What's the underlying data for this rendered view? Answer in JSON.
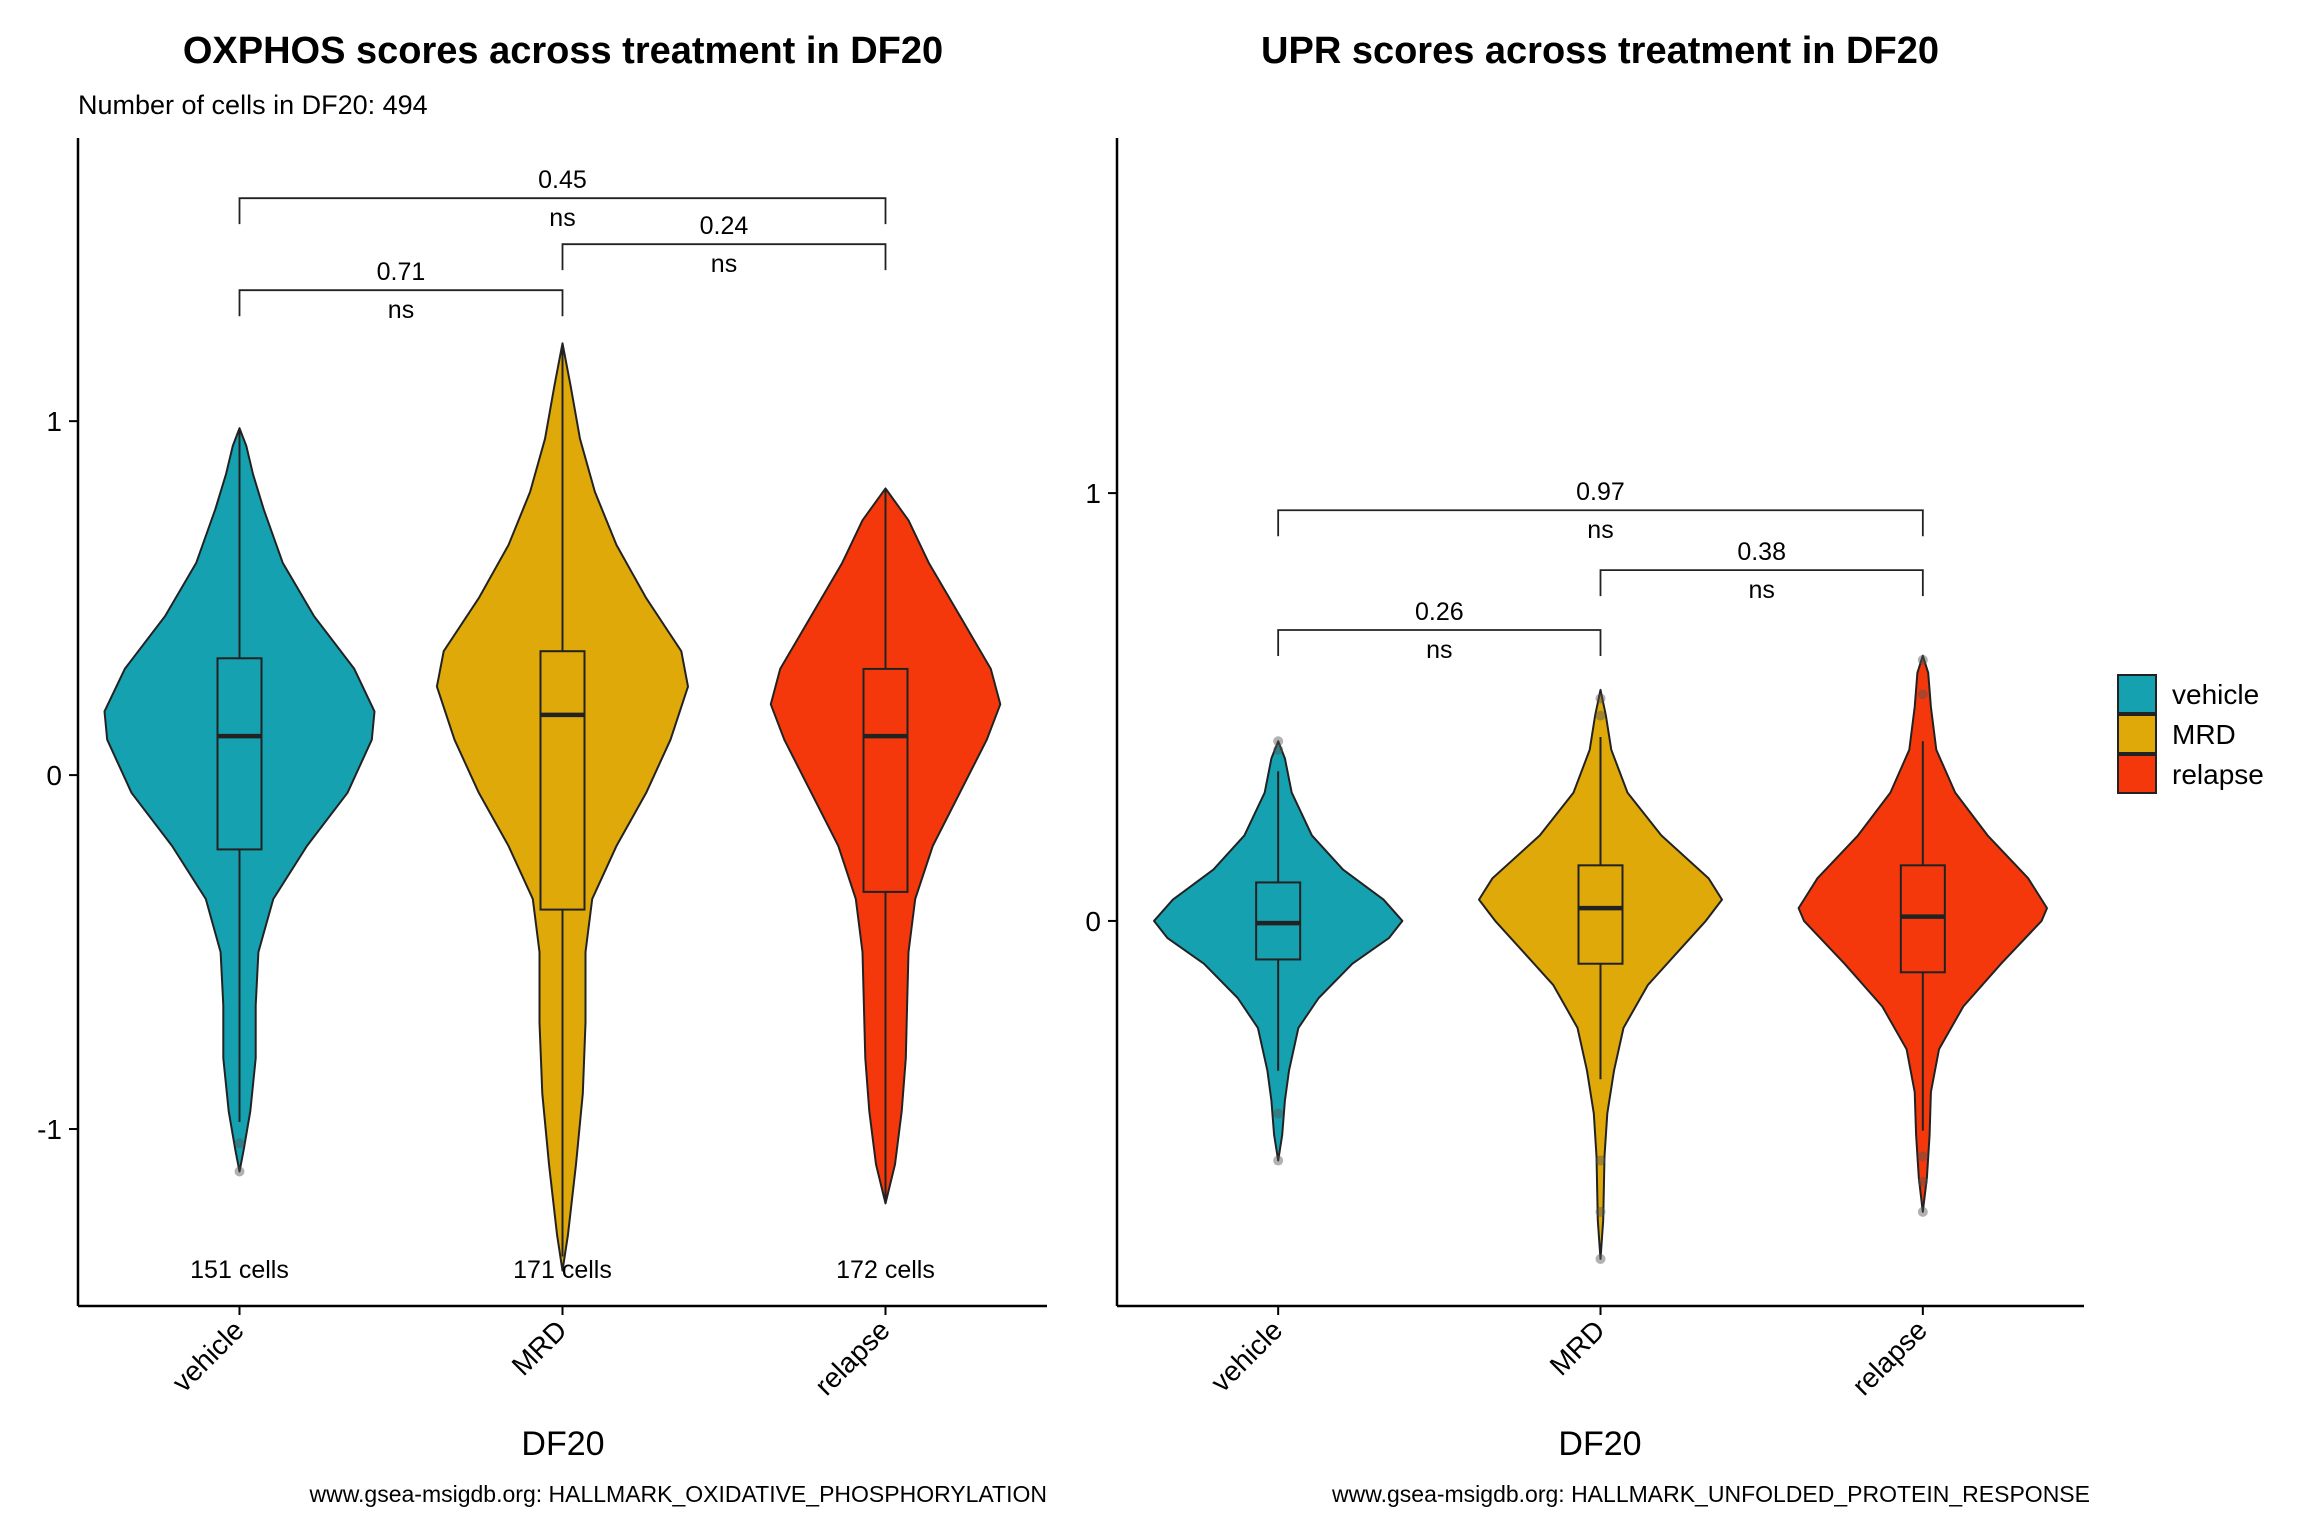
{
  "chart_data": [
    {
      "type": "violin",
      "title": "OXPHOS scores across treatment in DF20",
      "subtitle": "Number of cells in DF20: 494",
      "xlabel": "DF20",
      "ylabel": "",
      "caption": "www.gsea-msigdb.org: HALLMARK_OXIDATIVE_PHOSPHORYLATION",
      "categories": [
        "vehicle",
        "MRD",
        "relapse"
      ],
      "ylim": [
        -1.5,
        1.8
      ],
      "yticks": [
        -1,
        0,
        1
      ],
      "ytick_labels": [
        "-1",
        "0",
        "1"
      ],
      "violins": [
        {
          "group": "vehicle",
          "ymin": -1.12,
          "ymax": 0.98,
          "density": [
            [
              -1.12,
              0.0
            ],
            [
              -1.06,
              0.03
            ],
            [
              -0.95,
              0.08
            ],
            [
              -0.8,
              0.12
            ],
            [
              -0.65,
              0.12
            ],
            [
              -0.5,
              0.14
            ],
            [
              -0.35,
              0.25
            ],
            [
              -0.2,
              0.5
            ],
            [
              -0.05,
              0.8
            ],
            [
              0.1,
              0.98
            ],
            [
              0.18,
              1.0
            ],
            [
              0.3,
              0.85
            ],
            [
              0.45,
              0.55
            ],
            [
              0.6,
              0.32
            ],
            [
              0.75,
              0.18
            ],
            [
              0.85,
              0.1
            ],
            [
              0.93,
              0.05
            ],
            [
              0.98,
              0.0
            ]
          ],
          "box": {
            "q1": -0.21,
            "median": 0.11,
            "q3": 0.33,
            "whisker_low": -0.98,
            "whisker_high": 0.98
          },
          "outliers": [
            -1.04,
            -1.12
          ],
          "n_label": "151 cells"
        },
        {
          "group": "MRD",
          "ymin": -1.4,
          "ymax": 1.22,
          "density": [
            [
              -1.4,
              0.0
            ],
            [
              -1.3,
              0.04
            ],
            [
              -1.1,
              0.1
            ],
            [
              -0.9,
              0.15
            ],
            [
              -0.7,
              0.17
            ],
            [
              -0.5,
              0.17
            ],
            [
              -0.35,
              0.22
            ],
            [
              -0.2,
              0.4
            ],
            [
              -0.05,
              0.62
            ],
            [
              0.1,
              0.8
            ],
            [
              0.25,
              0.93
            ],
            [
              0.35,
              0.88
            ],
            [
              0.5,
              0.62
            ],
            [
              0.65,
              0.4
            ],
            [
              0.8,
              0.24
            ],
            [
              0.95,
              0.13
            ],
            [
              1.1,
              0.06
            ],
            [
              1.22,
              0.0
            ]
          ],
          "box": {
            "q1": -0.38,
            "median": 0.17,
            "q3": 0.35,
            "whisker_low": -1.36,
            "whisker_high": 1.22
          },
          "outliers": [],
          "n_label": "171 cells"
        },
        {
          "group": "relapse",
          "ymin": -1.21,
          "ymax": 0.81,
          "density": [
            [
              -1.21,
              0.0
            ],
            [
              -1.1,
              0.07
            ],
            [
              -0.95,
              0.12
            ],
            [
              -0.8,
              0.15
            ],
            [
              -0.65,
              0.16
            ],
            [
              -0.5,
              0.17
            ],
            [
              -0.35,
              0.22
            ],
            [
              -0.2,
              0.35
            ],
            [
              -0.05,
              0.55
            ],
            [
              0.1,
              0.75
            ],
            [
              0.2,
              0.85
            ],
            [
              0.3,
              0.78
            ],
            [
              0.45,
              0.55
            ],
            [
              0.6,
              0.32
            ],
            [
              0.72,
              0.17
            ],
            [
              0.81,
              0.0
            ]
          ],
          "box": {
            "q1": -0.33,
            "median": 0.11,
            "q3": 0.3,
            "whisker_low": -1.21,
            "whisker_high": 0.81
          },
          "outliers": [],
          "n_label": "172 cells"
        }
      ],
      "comparisons": [
        {
          "from": "vehicle",
          "to": "MRD",
          "y": 1.37,
          "p": "0.71",
          "sig": "ns"
        },
        {
          "from": "MRD",
          "to": "relapse",
          "y": 1.5,
          "p": "0.24",
          "sig": "ns"
        },
        {
          "from": "vehicle",
          "to": "relapse",
          "y": 1.63,
          "p": "0.45",
          "sig": "ns"
        }
      ]
    },
    {
      "type": "violin",
      "title": "UPR scores across treatment in DF20",
      "subtitle": "",
      "xlabel": "DF20",
      "ylabel": "",
      "caption": "www.gsea-msigdb.org: HALLMARK_UNFOLDED_PROTEIN_RESPONSE",
      "categories": [
        "vehicle",
        "MRD",
        "relapse"
      ],
      "ylim": [
        -0.9,
        1.83
      ],
      "yticks": [
        0,
        1
      ],
      "ytick_labels": [
        "0",
        "1"
      ],
      "violins": [
        {
          "group": "vehicle",
          "ymin": -0.56,
          "ymax": 0.42,
          "density": [
            [
              -0.56,
              0.0
            ],
            [
              -0.5,
              0.03
            ],
            [
              -0.42,
              0.05
            ],
            [
              -0.35,
              0.08
            ],
            [
              -0.25,
              0.15
            ],
            [
              -0.18,
              0.3
            ],
            [
              -0.1,
              0.55
            ],
            [
              -0.04,
              0.82
            ],
            [
              0.0,
              0.92
            ],
            [
              0.05,
              0.78
            ],
            [
              0.12,
              0.48
            ],
            [
              0.2,
              0.25
            ],
            [
              0.3,
              0.1
            ],
            [
              0.38,
              0.05
            ],
            [
              0.42,
              0.0
            ]
          ],
          "box": {
            "q1": -0.09,
            "median": -0.005,
            "q3": 0.09,
            "whisker_low": -0.35,
            "whisker_high": 0.35
          },
          "outliers": [
            0.42,
            0.4,
            -0.45,
            -0.56
          ],
          "n_label": ""
        },
        {
          "group": "MRD",
          "ymin": -0.79,
          "ymax": 0.54,
          "density": [
            [
              -0.79,
              0.0
            ],
            [
              -0.7,
              0.02
            ],
            [
              -0.55,
              0.03
            ],
            [
              -0.45,
              0.05
            ],
            [
              -0.35,
              0.1
            ],
            [
              -0.25,
              0.17
            ],
            [
              -0.15,
              0.35
            ],
            [
              -0.08,
              0.55
            ],
            [
              0.0,
              0.78
            ],
            [
              0.05,
              0.9
            ],
            [
              0.1,
              0.8
            ],
            [
              0.2,
              0.45
            ],
            [
              0.3,
              0.2
            ],
            [
              0.4,
              0.08
            ],
            [
              0.48,
              0.04
            ],
            [
              0.54,
              0.0
            ]
          ],
          "box": {
            "q1": -0.1,
            "median": 0.03,
            "q3": 0.13,
            "whisker_low": -0.37,
            "whisker_high": 0.43
          },
          "outliers": [
            0.52,
            0.48,
            -0.56,
            -0.68,
            -0.79
          ],
          "n_label": ""
        },
        {
          "group": "relapse",
          "ymin": -0.68,
          "ymax": 0.62,
          "density": [
            [
              -0.68,
              0.0
            ],
            [
              -0.6,
              0.03
            ],
            [
              -0.5,
              0.05
            ],
            [
              -0.4,
              0.06
            ],
            [
              -0.3,
              0.12
            ],
            [
              -0.2,
              0.3
            ],
            [
              -0.1,
              0.58
            ],
            [
              0.0,
              0.88
            ],
            [
              0.03,
              0.92
            ],
            [
              0.1,
              0.78
            ],
            [
              0.2,
              0.48
            ],
            [
              0.3,
              0.24
            ],
            [
              0.4,
              0.1
            ],
            [
              0.5,
              0.06
            ],
            [
              0.58,
              0.04
            ],
            [
              0.62,
              0.0
            ]
          ],
          "box": {
            "q1": -0.12,
            "median": 0.01,
            "q3": 0.13,
            "whisker_low": -0.49,
            "whisker_high": 0.42
          },
          "outliers": [
            0.61,
            0.53,
            -0.55,
            -0.61,
            -0.68
          ],
          "n_label": ""
        }
      ],
      "comparisons": [
        {
          "from": "vehicle",
          "to": "MRD",
          "y": 0.68,
          "p": "0.26",
          "sig": "ns"
        },
        {
          "from": "MRD",
          "to": "relapse",
          "y": 0.82,
          "p": "0.38",
          "sig": "ns"
        },
        {
          "from": "vehicle",
          "to": "relapse",
          "y": 0.96,
          "p": "0.97",
          "sig": "ns"
        }
      ]
    }
  ],
  "legend": {
    "placement": "right",
    "items": [
      {
        "label": "vehicle",
        "color": "#16A1B1"
      },
      {
        "label": "MRD",
        "color": "#DEA909"
      },
      {
        "label": "relapse",
        "color": "#F5380C"
      }
    ]
  }
}
